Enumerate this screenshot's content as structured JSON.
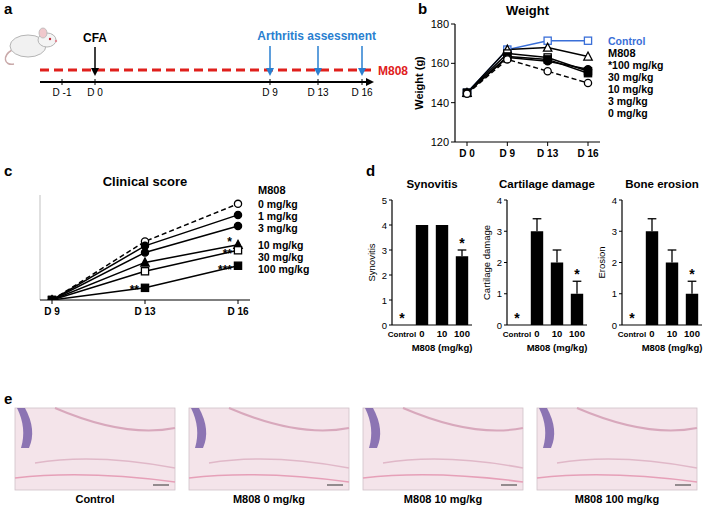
{
  "panel_labels": [
    "a",
    "b",
    "c",
    "d",
    "e"
  ],
  "timeline": {
    "days": [
      "D -1",
      "D 0",
      "D 9",
      "D 13",
      "D 16"
    ],
    "event": "CFA",
    "event_day": "D 0",
    "assessment": "Arthritis assessment",
    "assessment_days": [
      "D 9",
      "D 13",
      "D 16"
    ],
    "treatment": "M808"
  },
  "chart_data": [
    {
      "type": "line",
      "title": "Weight",
      "y_label": "Weight (g)",
      "categories": [
        "D 0",
        "D 9",
        "D 13",
        "D 16"
      ],
      "ylim": [
        120,
        180
      ],
      "yticks": [
        120,
        140,
        160,
        180
      ],
      "legend": "right",
      "legend_title": "M808",
      "color": "#000000",
      "series": [
        {
          "name": "Control",
          "color": "#3a6fd8",
          "marker": "square-open",
          "line_style": "solid",
          "values": [
            145,
            167,
            171.5,
            171.5
          ]
        },
        {
          "name": "*100 mg/kg",
          "color": "#000000",
          "marker": "triangle-open",
          "line_style": "solid",
          "values": [
            145,
            167,
            168,
            163.5
          ]
        },
        {
          "name": "30 mg/kg",
          "color": "#000000",
          "marker": "square-open",
          "line_style": "solid",
          "values": [
            145,
            165,
            163,
            156
          ]
        },
        {
          "name": "10 mg/kg",
          "color": "#000000",
          "marker": "square",
          "line_style": "solid",
          "values": [
            145,
            163.5,
            162,
            155
          ]
        },
        {
          "name": "3 mg/kg",
          "color": "#000000",
          "marker": "circle",
          "line_style": "solid",
          "values": [
            145,
            163,
            161,
            157
          ]
        },
        {
          "name": "0 mg/kg",
          "color": "#000000",
          "marker": "circle-open",
          "line_style": "dashed",
          "values": [
            144.5,
            162,
            156,
            150
          ]
        }
      ]
    },
    {
      "type": "line",
      "title": "Clinical score",
      "categories": [
        "D 9",
        "D 13",
        "D 16"
      ],
      "ylim": [
        0,
        9.5
      ],
      "tick_labels": "x",
      "legend": "right",
      "legend_title": "M808",
      "color": "#000000",
      "series": [
        {
          "name": "0 mg/kg",
          "color": "#000000",
          "marker": "circle-open",
          "line_style": "dashed",
          "values": [
            0,
            5.3,
            8.7
          ]
        },
        {
          "name": "1 mg/kg",
          "color": "#000000",
          "marker": "circle",
          "line_style": "solid",
          "values": [
            0,
            4.9,
            7.7
          ]
        },
        {
          "name": "3 mg/kg",
          "color": "#000000",
          "marker": "circle",
          "line_style": "solid",
          "values": [
            0,
            4.3,
            6.7
          ]
        },
        {
          "name": "10 mg/kg",
          "color": "#000000",
          "marker": "triangle",
          "line_style": "solid",
          "values": [
            0,
            3.4,
            5.0
          ]
        },
        {
          "name": "30 mg/kg",
          "color": "#000000",
          "marker": "square-open",
          "line_style": "solid",
          "values": [
            0,
            2.6,
            4.5
          ]
        },
        {
          "name": "100 mg/kg",
          "color": "#000000",
          "marker": "square",
          "line_style": "solid",
          "values": [
            0,
            1.1,
            3.1
          ]
        }
      ],
      "annotations": [
        {
          "text": "**",
          "x": "D 13",
          "y": 1.1
        },
        {
          "text": "*",
          "x": "D 16",
          "y": 5.4
        },
        {
          "text": "**",
          "x": "D 16",
          "y": 4.3
        },
        {
          "text": "***",
          "x": "D 16",
          "y": 2.9
        }
      ]
    },
    {
      "type": "bar",
      "title": "Synovitis",
      "y_label": "Synovitis",
      "x_label": "M808 (mg/kg)",
      "categories": [
        "Control",
        "0",
        "10",
        "100"
      ],
      "values": [
        0,
        4,
        4,
        2.75
      ],
      "errors": [
        0,
        0,
        0,
        0.25
      ],
      "color": "#000000",
      "ylim": [
        0,
        5
      ],
      "yticks": [
        0,
        1,
        2,
        3,
        4,
        5
      ],
      "annotations": [
        {
          "text": "*",
          "x": "Control",
          "y": 0
        },
        {
          "text": "*",
          "x": "100",
          "y": 3
        }
      ]
    },
    {
      "type": "bar",
      "title": "Cartilage damage",
      "y_label": "Cartilage damage",
      "x_label": "M808 (mg/kg)",
      "categories": [
        "Control",
        "0",
        "10",
        "100"
      ],
      "values": [
        0,
        3,
        2,
        1
      ],
      "errors": [
        0,
        0.4,
        0.4,
        0.4
      ],
      "color": "#000000",
      "ylim": [
        0,
        4
      ],
      "yticks": [
        0,
        1,
        2,
        3,
        4
      ],
      "annotations": [
        {
          "text": "*",
          "x": "Control",
          "y": 0
        },
        {
          "text": "*",
          "x": "100",
          "y": 1.4
        }
      ]
    },
    {
      "type": "bar",
      "title": "Bone erosion",
      "y_label": "Erosion",
      "x_label": "M808 (mg/kg)",
      "categories": [
        "Control",
        "0",
        "10",
        "100"
      ],
      "values": [
        0,
        3,
        2,
        1
      ],
      "errors": [
        0,
        0.4,
        0.4,
        0.4
      ],
      "color": "#000000",
      "ylim": [
        0,
        4
      ],
      "yticks": [
        0,
        1,
        2,
        3,
        4
      ],
      "annotations": [
        {
          "text": "*",
          "x": "Control",
          "y": 0
        },
        {
          "text": "*",
          "x": "100",
          "y": 1.4
        }
      ]
    }
  ],
  "histology": {
    "images": [
      "Control",
      "M808  0 mg/kg",
      "M808 10 mg/kg",
      "M808 100 mg/kg"
    ]
  }
}
